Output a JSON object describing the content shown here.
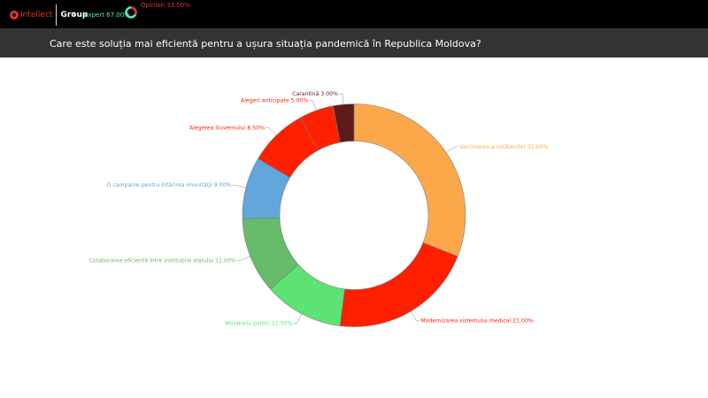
{
  "header": {
    "logo_intellect": "Intellect",
    "logo_group": "Group",
    "ampersand": "&",
    "expert_label": "Expert 67.00%",
    "opinion_label": "Opinion 33.00%",
    "expert_share": 67,
    "opinion_share": 33,
    "colors": {
      "expert": "#5ee8c8",
      "opinion": "#e8322a",
      "bar": "#000000"
    }
  },
  "title": "Care este soluția mai eficientă pentru a ușura situația pandemică în Republica Moldova?",
  "chart_data": {
    "type": "pie",
    "donut": true,
    "categories": [
      "Vaccinarea a cetățenilor",
      "Modernizarea sistemului medical",
      "Moratoriu politic",
      "Colaborarea eficientă între instituțiile statului",
      "O campanie pentru întărirea imunității",
      "Alegerea Guvernului",
      "Alegeri anticipate",
      "Carantină"
    ],
    "values": [
      31,
      21,
      11.5,
      11,
      9,
      8.5,
      5,
      3
    ],
    "labels": [
      "Vaccinarea a cetățenilor 31.00%",
      "Modernizarea sistemului medical 21.00%",
      "Moratoriu politic 11.50%",
      "Colaborarea eficientă între instituțiile statului 11.00%",
      "O campanie pentru întărirea imunității 9.00%",
      "Alegerea Guvernului 8.50%",
      "Alegeri anticipate 5.00%",
      "Carantină 3.00%"
    ],
    "colors": [
      "#fba84b",
      "#ff2000",
      "#5de374",
      "#66bc6a",
      "#62a7dc",
      "#ff2000",
      "#ff2000",
      "#5e1b1b"
    ],
    "label_colors": [
      "#fba84b",
      "#ff2000",
      "#5de374",
      "#66bc6a",
      "#62a7dc",
      "#ff2000",
      "#ff2000",
      "#5e1b1b"
    ],
    "start_angle": 0,
    "direction": "clockwise",
    "legend": "none",
    "xlabel": "",
    "ylabel": ""
  }
}
